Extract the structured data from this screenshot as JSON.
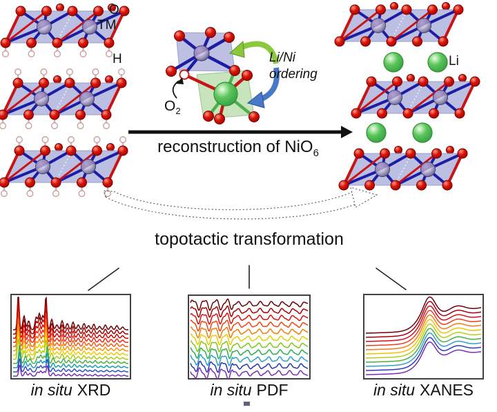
{
  "figure": {
    "structure_labels": {
      "oxygen": "O",
      "transition_metal": "TM",
      "hydrogen": "H",
      "lithium": "Li"
    },
    "center": {
      "o2_base": "O",
      "o2_sub": "2",
      "ordering_line1": "Li/Ni",
      "ordering_line2": "ordering"
    },
    "reaction": {
      "text": "reconstruction of NiO",
      "sub": "6"
    },
    "transformation": "topotactic transformation"
  },
  "panels": [
    {
      "id": "xrd",
      "label_italic": "in situ",
      "label_rest": "XRD",
      "trace_colors": [
        "#6d0000",
        "#a00000",
        "#cc0400",
        "#ee2810",
        "#f45c14",
        "#f49408",
        "#eccc00",
        "#accc14",
        "#48b03c",
        "#18a0a8",
        "#2c50c8",
        "#7a2eb0"
      ]
    },
    {
      "id": "pdf",
      "label_italic": "in situ",
      "label_rest": "PDF",
      "trace_colors": [
        "#6d0000",
        "#a80000",
        "#d81008",
        "#f04410",
        "#f07c08",
        "#e8cc00",
        "#80c818",
        "#28ac50",
        "#28a0cc",
        "#2434bc",
        "#7a2eb0"
      ]
    },
    {
      "id": "xanes",
      "label_italic": "in situ",
      "label_rest": "XANES",
      "trace_colors": [
        "#6d0008",
        "#a80010",
        "#d41018",
        "#f03c20",
        "#f47c10",
        "#f0c400",
        "#b4d014",
        "#48b044",
        "#30a0c8",
        "#2c3cc0",
        "#7a2eb0"
      ]
    }
  ],
  "colors": {
    "oxygen": "#d81408",
    "oxygen_dark": "#7a0000",
    "hydrogen": "#ffffff",
    "hydrogen_edge": "#c89898",
    "tm_body": "#c6c2de",
    "tm_purple": "#6a4fa0",
    "lithium": "#5cc45c",
    "lithium_edge": "#2f8f2f",
    "slab": "#b6badf",
    "slab_edge": "#9098c8",
    "li_octahedron": "#c2e2b6",
    "bond_blue": "#1c1ca4",
    "bond_red": "#c81414",
    "bond_green": "#4fae4f",
    "arrow": "#111111",
    "ordering_arrow_green": "#8cc83c",
    "ordering_arrow_blue": "#4878c8",
    "dashed": "#555555",
    "panel_border": "#404040",
    "panel_bg": "#ffffff"
  }
}
